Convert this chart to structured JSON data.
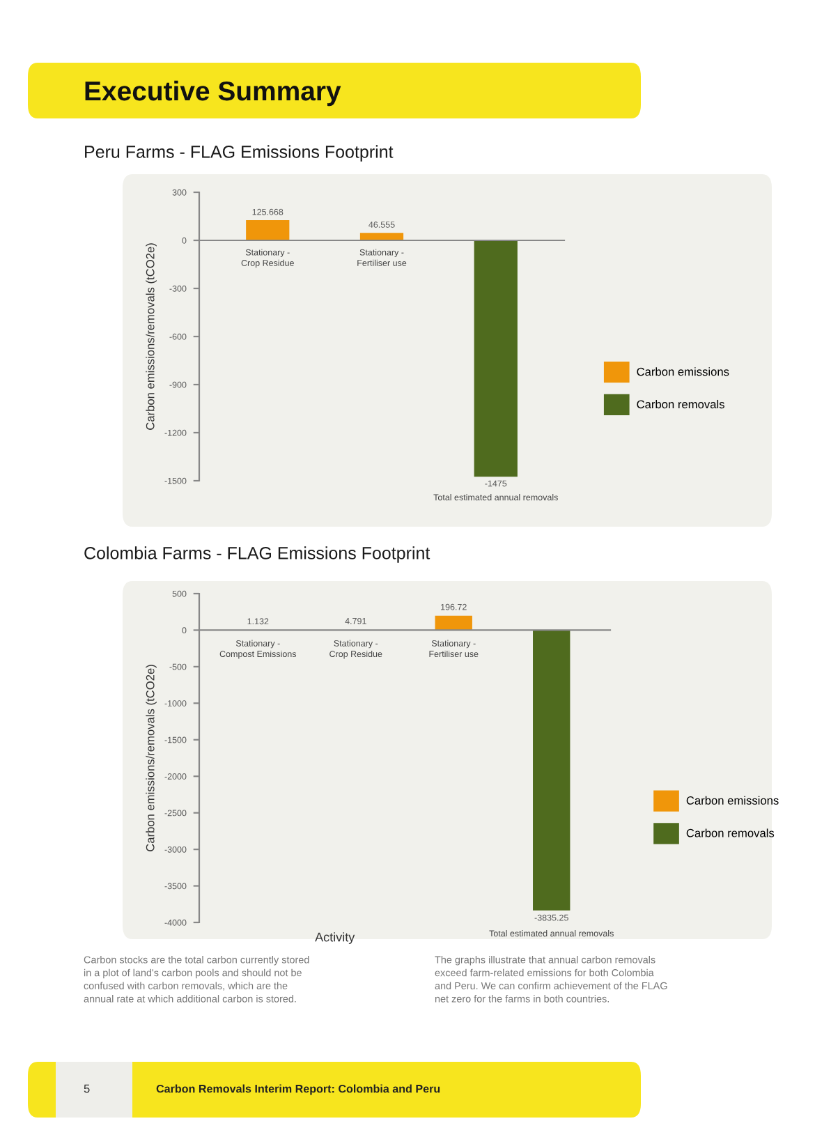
{
  "chart_data": [
    {
      "type": "bar",
      "title": "Peru Farms - FLAG Emissions Footprint",
      "ylabel": "Carbon emissions/removals (tCO2e)",
      "categories": [
        "Stationary -\nCrop Residue",
        "Stationary -\nFertiliser use",
        "Total estimated annual removals"
      ],
      "series": [
        {
          "name": "Carbon emissions",
          "color": "#f0960a",
          "values": [
            125.668,
            46.555,
            null
          ],
          "value_labels": [
            "125.668",
            "46.555",
            null
          ]
        },
        {
          "name": "Carbon removals",
          "color": "#4f6b1e",
          "values": [
            null,
            null,
            -1475
          ],
          "value_labels": [
            null,
            null,
            "-1475"
          ]
        }
      ],
      "ylim": [
        -1500,
        300
      ],
      "yticks": [
        300,
        0,
        -300,
        -600,
        -900,
        -1200,
        -1500
      ],
      "legend": "right",
      "tick_labels": "y",
      "annotations": [
        "Executive Summary"
      ]
    },
    {
      "type": "bar",
      "title": "Colombia Farms - FLAG Emissions Footprint",
      "xlabel": "Activity",
      "ylabel": "Carbon emissions/removals (tCO2e)",
      "categories": [
        "Stationary -\nCompost Emissions",
        "Stationary -\nCrop Residue",
        "Stationary -\nFertiliser use",
        "Total estimated annual removals"
      ],
      "series": [
        {
          "name": "Carbon emissions",
          "color": "#f0960a",
          "values": [
            1.132,
            4.791,
            196.72,
            null
          ],
          "value_labels": [
            "1.132",
            "4.791",
            "196.72",
            null
          ]
        },
        {
          "name": "Carbon removals",
          "color": "#4f6b1e",
          "values": [
            null,
            null,
            null,
            -3835.25
          ],
          "value_labels": [
            null,
            null,
            null,
            "-3835.25"
          ]
        }
      ],
      "ylim": [
        -4000,
        500
      ],
      "yticks": [
        500,
        0,
        -500,
        -1000,
        -1500,
        -2000,
        -2500,
        -3000,
        -3500,
        -4000
      ],
      "legend": "right",
      "tick_labels": "y",
      "annotations": [
        "Carbon stocks are the total carbon currently stored\nin a plot of land's carbon pools and should not be\nconfused with carbon removals, which are the\nannual rate at which additional carbon is stored.",
        "The graphs illustrate that annual carbon removals\nexceed farm-related emissions for both Colombia\nand Peru. We can confirm achievement of the FLAG\nnet zero for the farms in both countries.",
        "5",
        "Carbon Removals Interim Report: Colombia and Peru"
      ]
    }
  ]
}
